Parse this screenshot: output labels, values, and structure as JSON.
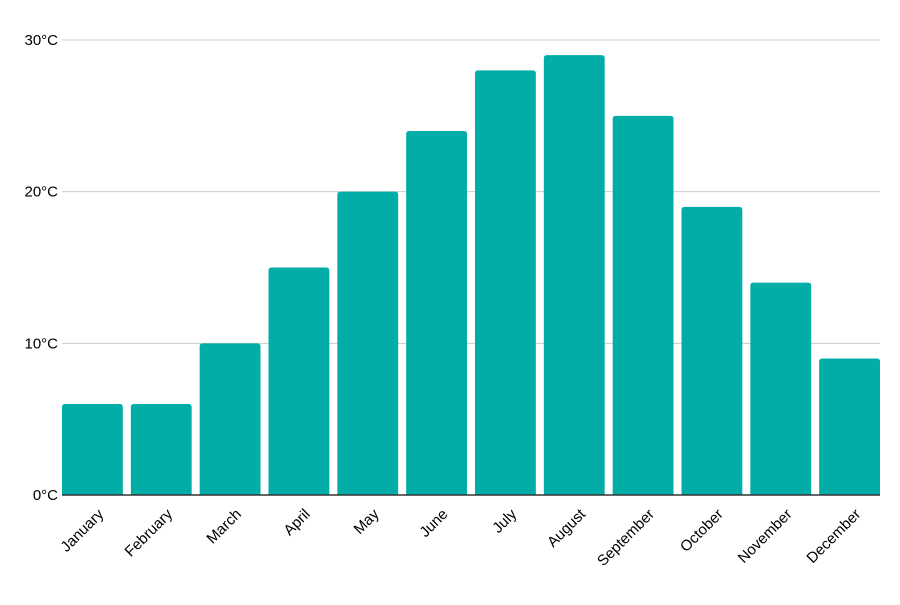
{
  "chart_data": {
    "type": "bar",
    "title": "",
    "xlabel": "",
    "ylabel": "",
    "categories": [
      "January",
      "February",
      "March",
      "April",
      "May",
      "June",
      "July",
      "August",
      "September",
      "October",
      "November",
      "December"
    ],
    "values": [
      6,
      6,
      10,
      15,
      20,
      24,
      28,
      29,
      25,
      19,
      14,
      9
    ],
    "ylim": [
      0,
      30
    ],
    "yticks": [
      0,
      10,
      20,
      30
    ],
    "ytick_labels": [
      "0°C",
      "10°C",
      "20°C",
      "30°C"
    ],
    "grid": true,
    "legend": "none",
    "colors": {
      "bar": "#03ADA7",
      "grid": "#cccccc",
      "axis": "#333333",
      "text": "#000000"
    }
  }
}
